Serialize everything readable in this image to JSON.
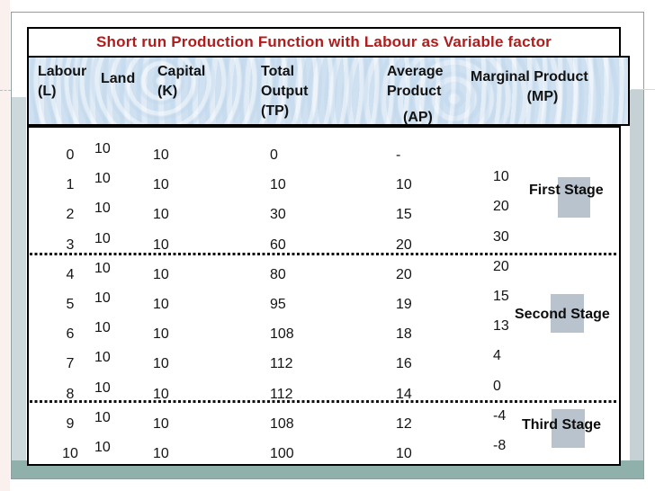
{
  "slide": {
    "title": "Short run Production Function with Labour as Variable factor"
  },
  "table": {
    "columns": [
      {
        "id": "labour",
        "lines": [
          "Labour",
          "(L)"
        ]
      },
      {
        "id": "land",
        "lines": [
          "Land"
        ]
      },
      {
        "id": "capital",
        "lines": [
          "Capital",
          "(K)"
        ]
      },
      {
        "id": "tp",
        "lines": [
          "Total",
          "Output",
          "(TP)"
        ]
      },
      {
        "id": "ap",
        "lines": [
          "Average",
          "Product",
          "(AP)"
        ]
      },
      {
        "id": "mp",
        "lines": [
          "Marginal Product",
          "(MP)"
        ]
      }
    ],
    "rows": [
      {
        "labour": "0",
        "land": "10",
        "capital": "10",
        "tp": "0",
        "ap": "-",
        "mp": ""
      },
      {
        "labour": "1",
        "land": "10",
        "capital": "10",
        "tp": "10",
        "ap": "10",
        "mp": "10"
      },
      {
        "labour": "2",
        "land": "10",
        "capital": "10",
        "tp": "30",
        "ap": "15",
        "mp": "20"
      },
      {
        "labour": "3",
        "land": "10",
        "capital": "10",
        "tp": "60",
        "ap": "20",
        "mp": "30"
      },
      {
        "labour": "4",
        "land": "10",
        "capital": "10",
        "tp": "80",
        "ap": "20",
        "mp": "20"
      },
      {
        "labour": "5",
        "land": "10",
        "capital": "10",
        "tp": "95",
        "ap": "19",
        "mp": "15"
      },
      {
        "labour": "6",
        "land": "10",
        "capital": "10",
        "tp": "108",
        "ap": "18",
        "mp": "13"
      },
      {
        "labour": "7",
        "land": "10",
        "capital": "10",
        "tp": "112",
        "ap": "16",
        "mp": "4"
      },
      {
        "labour": "8",
        "land": "10",
        "capital": "10",
        "tp": "112",
        "ap": "14",
        "mp": "0"
      },
      {
        "labour": "9",
        "land": "10",
        "capital": "10",
        "tp": "108",
        "ap": "12",
        "mp": "-4"
      },
      {
        "labour": "10",
        "land": "10",
        "capital": "10",
        "tp": "100",
        "ap": "10",
        "mp": "-8"
      }
    ]
  },
  "stages": [
    {
      "label": "First Stage"
    },
    {
      "label": "Second Stage"
    },
    {
      "label": "Third Stage"
    }
  ],
  "chart_data": {
    "type": "table",
    "title": "Short run Production Function with Labour as Variable factor",
    "columns": [
      "Labour (L)",
      "Land",
      "Capital (K)",
      "Total Output (TP)",
      "Average Product (AP)",
      "Marginal Product (MP)"
    ],
    "rows": [
      [
        0,
        10,
        10,
        0,
        "-",
        null
      ],
      [
        1,
        10,
        10,
        10,
        10,
        10
      ],
      [
        2,
        10,
        10,
        30,
        15,
        20
      ],
      [
        3,
        10,
        10,
        60,
        20,
        30
      ],
      [
        4,
        10,
        10,
        80,
        20,
        20
      ],
      [
        5,
        10,
        10,
        95,
        19,
        15
      ],
      [
        6,
        10,
        10,
        108,
        18,
        13
      ],
      [
        7,
        10,
        10,
        112,
        16,
        4
      ],
      [
        8,
        10,
        10,
        112,
        14,
        0
      ],
      [
        9,
        10,
        10,
        108,
        12,
        -4
      ],
      [
        10,
        10,
        10,
        100,
        10,
        -8
      ]
    ],
    "annotations": [
      "First Stage",
      "Second Stage",
      "Third Stage"
    ]
  },
  "colors": {
    "title_red": "#b01c1c",
    "header_blue": "#cfe1f1",
    "bottom_bar_green": "#8fb0ab",
    "side_bar_left": "#ccd8db",
    "side_bar_right": "#c6d1d6",
    "stage_square_gray": "#b9c3cd",
    "table_border": "#000000"
  }
}
